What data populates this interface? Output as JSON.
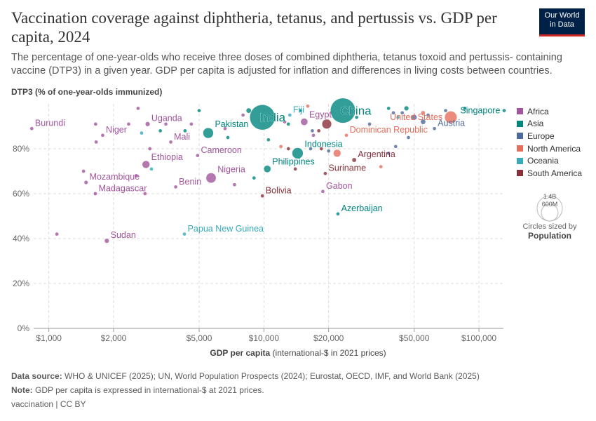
{
  "header": {
    "title": "Vaccination coverage against diphtheria, tetanus, and pertussis vs. GDP per capita, 2024",
    "subtitle": "The percentage of one-year-olds who receive three doses of combined diphtheria, tetanus toxoid and pertussis- containing vaccine (DTP3) in a given year. GDP per capita is adjusted for inflation and differences in living costs between countries.",
    "logo_line1": "Our World",
    "logo_line2": "in Data"
  },
  "legend": {
    "items": [
      {
        "label": "Africa",
        "color": "#a2559c"
      },
      {
        "label": "Asia",
        "color": "#00847e"
      },
      {
        "label": "Europe",
        "color": "#4c6a9c"
      },
      {
        "label": "North America",
        "color": "#e56e5a"
      },
      {
        "label": "Oceania",
        "color": "#38aaba"
      },
      {
        "label": "South America",
        "color": "#883039"
      }
    ],
    "size_big": "1.4B",
    "size_small": "600M",
    "size_note": "Circles sized by",
    "size_var": "Population"
  },
  "footer": {
    "source_label": "Data source:",
    "source": "WHO & UNICEF (2025); UN, World Population Prospects (2024); Eurostat, OECD, IMF, and World Bank (2025)",
    "note_label": "Note:",
    "note": "GDP per capita is expressed in international-$ at 2021 prices.",
    "license": "vaccination | CC BY"
  },
  "chart_data": {
    "type": "scatter",
    "ylabel": "DTP3 (% of one-year-olds immunized)",
    "xlabel_bold": "GDP per capita",
    "xlabel_rest": "(international-$ in 2021 prices)",
    "xscale": "log",
    "xlim": [
      850,
      130000
    ],
    "ylim": [
      0,
      100
    ],
    "xticks": [
      {
        "v": 1000,
        "label": "$1,000"
      },
      {
        "v": 2000,
        "label": "$2,000"
      },
      {
        "v": 5000,
        "label": "$5,000"
      },
      {
        "v": 10000,
        "label": "$10,000"
      },
      {
        "v": 20000,
        "label": "$20,000"
      },
      {
        "v": 50000,
        "label": "$50,000"
      },
      {
        "v": 100000,
        "label": "$100,000"
      }
    ],
    "yticks": [
      {
        "v": 0,
        "label": "0%"
      },
      {
        "v": 20,
        "label": "20%"
      },
      {
        "v": 40,
        "label": "40%"
      },
      {
        "v": 60,
        "label": "60%"
      },
      {
        "v": 80,
        "label": "80%"
      }
    ],
    "grid": true,
    "legend_position": "right",
    "points": [
      {
        "name": "Burundi",
        "gdp": 833,
        "dtp3": 89,
        "region": "Africa",
        "pop": 14,
        "label": true
      },
      {
        "name": "Niger",
        "gdp": 1780,
        "dtp3": 86,
        "region": "Africa",
        "pop": 27,
        "label": true
      },
      {
        "name": "Uganda",
        "gdp": 2880,
        "dtp3": 91,
        "region": "Africa",
        "pop": 50,
        "label": true
      },
      {
        "name": "Mali",
        "gdp": 3690,
        "dtp3": 83,
        "region": "Africa",
        "pop": 24,
        "label": true
      },
      {
        "name": "Ethiopia",
        "gdp": 2830,
        "dtp3": 73,
        "region": "Africa",
        "pop": 132,
        "label": true
      },
      {
        "name": "Mozambique",
        "gdp": 1490,
        "dtp3": 65,
        "region": "Africa",
        "pop": 35,
        "label": true
      },
      {
        "name": "Madagascar",
        "gdp": 1645,
        "dtp3": 60,
        "region": "Africa",
        "pop": 32,
        "label": true
      },
      {
        "name": "Sudan",
        "gdp": 1860,
        "dtp3": 39,
        "region": "Africa",
        "pop": 50,
        "label": true
      },
      {
        "name": "Nigeria",
        "gdp": 5680,
        "dtp3": 67,
        "region": "Africa",
        "pop": 232,
        "label": true
      },
      {
        "name": "Benin",
        "gdp": 3890,
        "dtp3": 63,
        "region": "Africa",
        "pop": 14,
        "label": true
      },
      {
        "name": "Cameroon",
        "gdp": 4920,
        "dtp3": 77,
        "region": "Africa",
        "pop": 29,
        "label": true
      },
      {
        "name": "Gabon",
        "gdp": 18800,
        "dtp3": 61,
        "region": "Africa",
        "pop": 2.5,
        "label": true
      },
      {
        "name": "Egypt",
        "gdp": 15400,
        "dtp3": 92,
        "region": "Africa",
        "pop": 116,
        "label": true
      },
      {
        "name": "Pakistan",
        "gdp": 5510,
        "dtp3": 87,
        "region": "Asia",
        "pop": 251,
        "label": true
      },
      {
        "name": "India",
        "gdp": 9840,
        "dtp3": 94,
        "region": "Asia",
        "pop": 1450,
        "label": true
      },
      {
        "name": "China",
        "gdp": 23300,
        "dtp3": 97,
        "region": "Asia",
        "pop": 1420,
        "label": true
      },
      {
        "name": "Indonesia",
        "gdp": 14350,
        "dtp3": 78,
        "region": "Asia",
        "pop": 283,
        "label": true
      },
      {
        "name": "Philippines",
        "gdp": 10370,
        "dtp3": 71,
        "region": "Asia",
        "pop": 116,
        "label": true
      },
      {
        "name": "Azerbaijan",
        "gdp": 22100,
        "dtp3": 51,
        "region": "Asia",
        "pop": 10,
        "label": true
      },
      {
        "name": "Singapore",
        "gdp": 131000,
        "dtp3": 97,
        "region": "Asia",
        "pop": 6,
        "label": true
      },
      {
        "name": "Fiji",
        "gdp": 13200,
        "dtp3": 95,
        "region": "Oceania",
        "pop": 1,
        "label": true
      },
      {
        "name": "Papua New Guinea",
        "gdp": 4270,
        "dtp3": 42,
        "region": "Oceania",
        "pop": 10,
        "label": true
      },
      {
        "name": "United States",
        "gdp": 74000,
        "dtp3": 94,
        "region": "North America",
        "pop": 345,
        "label": true
      },
      {
        "name": "Dominican Republic",
        "gdp": 24200,
        "dtp3": 86,
        "region": "North America",
        "pop": 11,
        "label": true
      },
      {
        "name": "Mexico",
        "gdp": 21900,
        "dtp3": 78,
        "region": "North America",
        "pop": 130,
        "label": false
      },
      {
        "name": "Austria",
        "gdp": 62100,
        "dtp3": 89,
        "region": "Europe",
        "pop": 9,
        "label": true
      },
      {
        "name": "Argentina",
        "gdp": 26300,
        "dtp3": 75,
        "region": "South America",
        "pop": 45,
        "label": true
      },
      {
        "name": "Suriname",
        "gdp": 19300,
        "dtp3": 69,
        "region": "South America",
        "pop": 0.6,
        "label": true
      },
      {
        "name": "Bolivia",
        "gdp": 9840,
        "dtp3": 59,
        "region": "South America",
        "pop": 12,
        "label": true
      },
      {
        "name": "Brazil",
        "gdp": 19600,
        "dtp3": 91,
        "region": "South America",
        "pop": 212,
        "label": false
      },
      {
        "name": "",
        "gdp": 1090,
        "dtp3": 42,
        "region": "Africa",
        "pop": 6
      },
      {
        "name": "",
        "gdp": 1650,
        "dtp3": 91,
        "region": "Africa",
        "pop": 8
      },
      {
        "name": "",
        "gdp": 1660,
        "dtp3": 83,
        "region": "Africa",
        "pop": 6
      },
      {
        "name": "",
        "gdp": 1450,
        "dtp3": 70,
        "region": "Africa",
        "pop": 6
      },
      {
        "name": "",
        "gdp": 2350,
        "dtp3": 91,
        "region": "Africa",
        "pop": 6
      },
      {
        "name": "",
        "gdp": 2600,
        "dtp3": 98,
        "region": "Africa",
        "pop": 6
      },
      {
        "name": "",
        "gdp": 2950,
        "dtp3": 80,
        "region": "Africa",
        "pop": 6
      },
      {
        "name": "",
        "gdp": 2550,
        "dtp3": 68,
        "region": "Africa",
        "pop": 6
      },
      {
        "name": "",
        "gdp": 2800,
        "dtp3": 60,
        "region": "Africa",
        "pop": 2,
        "region2": ""
      },
      {
        "name": "",
        "gdp": 3500,
        "dtp3": 91,
        "region": "Africa",
        "pop": 6
      },
      {
        "name": "",
        "gdp": 4600,
        "dtp3": 91,
        "region": "Africa",
        "pop": 6
      },
      {
        "name": "",
        "gdp": 6600,
        "dtp3": 89,
        "region": "Africa",
        "pop": 10
      },
      {
        "name": "",
        "gdp": 7300,
        "dtp3": 64,
        "region": "Africa",
        "pop": 10
      },
      {
        "name": "",
        "gdp": 8000,
        "dtp3": 95,
        "region": "Africa",
        "pop": 12
      },
      {
        "name": "",
        "gdp": 12500,
        "dtp3": 92,
        "region": "Africa",
        "pop": 25
      },
      {
        "name": "",
        "gdp": 17000,
        "dtp3": 86,
        "region": "Africa",
        "pop": 8
      },
      {
        "name": "",
        "gdp": 5000,
        "dtp3": 97,
        "region": "Asia",
        "pop": 6
      },
      {
        "name": "",
        "gdp": 8500,
        "dtp3": 97,
        "region": "Asia",
        "pop": 60
      },
      {
        "name": "",
        "gdp": 10500,
        "dtp3": 84,
        "region": "Asia",
        "pop": 6
      },
      {
        "name": "",
        "gdp": 14800,
        "dtp3": 97,
        "region": "Asia",
        "pop": 30
      },
      {
        "name": "",
        "gdp": 13000,
        "dtp3": 91,
        "region": "Asia",
        "pop": 12
      },
      {
        "name": "",
        "gdp": 38000,
        "dtp3": 98,
        "region": "Asia",
        "pop": 30
      },
      {
        "name": "",
        "gdp": 46000,
        "dtp3": 98,
        "region": "Asia",
        "pop": 50
      },
      {
        "name": "",
        "gdp": 27000,
        "dtp3": 94,
        "region": "Asia",
        "pop": 8
      },
      {
        "name": "",
        "gdp": 86000,
        "dtp3": 98,
        "region": "Asia",
        "pop": 4
      },
      {
        "name": "",
        "gdp": 4300,
        "dtp3": 88,
        "region": "Asia",
        "pop": 5
      },
      {
        "name": "",
        "gdp": 3300,
        "dtp3": 88,
        "region": "Asia",
        "pop": 4
      },
      {
        "name": "",
        "gdp": 6800,
        "dtp3": 85,
        "region": "Asia",
        "pop": 4
      },
      {
        "name": "",
        "gdp": 9000,
        "dtp3": 67,
        "region": "Asia",
        "pop": 4
      },
      {
        "name": "",
        "gdp": 16500,
        "dtp3": 80,
        "region": "Europe",
        "pop": 6
      },
      {
        "name": "",
        "gdp": 16800,
        "dtp3": 88,
        "region": "Europe",
        "pop": 6
      },
      {
        "name": "",
        "gdp": 31000,
        "dtp3": 91,
        "region": "Europe",
        "pop": 8
      },
      {
        "name": "",
        "gdp": 40000,
        "dtp3": 96,
        "region": "Europe",
        "pop": 10
      },
      {
        "name": "",
        "gdp": 44000,
        "dtp3": 96,
        "region": "Europe",
        "pop": 6
      },
      {
        "name": "",
        "gdp": 50000,
        "dtp3": 94,
        "region": "Europe",
        "pop": 68
      },
      {
        "name": "",
        "gdp": 55000,
        "dtp3": 92,
        "region": "Europe",
        "pop": 60
      },
      {
        "name": "",
        "gdp": 58000,
        "dtp3": 95,
        "region": "Europe",
        "pop": 10
      },
      {
        "name": "",
        "gdp": 70000,
        "dtp3": 97,
        "region": "Europe",
        "pop": 8
      },
      {
        "name": "",
        "gdp": 41000,
        "dtp3": 81,
        "region": "Europe",
        "pop": 4
      },
      {
        "name": "",
        "gdp": 38000,
        "dtp3": 78,
        "region": "Europe",
        "pop": 4
      },
      {
        "name": "",
        "gdp": 20000,
        "dtp3": 79,
        "region": "Europe",
        "pop": 4
      },
      {
        "name": "",
        "gdp": 47000,
        "dtp3": 85,
        "region": "Europe",
        "pop": 4
      },
      {
        "name": "",
        "gdp": 14000,
        "dtp3": 71,
        "region": "South America",
        "pop": 6
      },
      {
        "name": "",
        "gdp": 18000,
        "dtp3": 88,
        "region": "South America",
        "pop": 30
      },
      {
        "name": "",
        "gdp": 18500,
        "dtp3": 80,
        "region": "South America",
        "pop": 6
      },
      {
        "name": "",
        "gdp": 13000,
        "dtp3": 80,
        "region": "South America",
        "pop": 6
      },
      {
        "name": "",
        "gdp": 12000,
        "dtp3": 81,
        "region": "North America",
        "pop": 6
      },
      {
        "name": "",
        "gdp": 16000,
        "dtp3": 99,
        "region": "North America",
        "pop": 4
      },
      {
        "name": "",
        "gdp": 35000,
        "dtp3": 72,
        "region": "North America",
        "pop": 3
      },
      {
        "name": "",
        "gdp": 55000,
        "dtp3": 96,
        "region": "North America",
        "pop": 40
      },
      {
        "name": "",
        "gdp": 2700,
        "dtp3": 87,
        "region": "Oceania",
        "pop": 3
      },
      {
        "name": "",
        "gdp": 3000,
        "dtp3": 71,
        "region": "Oceania",
        "pop": 3
      },
      {
        "name": "",
        "gdp": 42000,
        "dtp3": 94,
        "region": "Oceania",
        "pop": 4
      }
    ]
  }
}
